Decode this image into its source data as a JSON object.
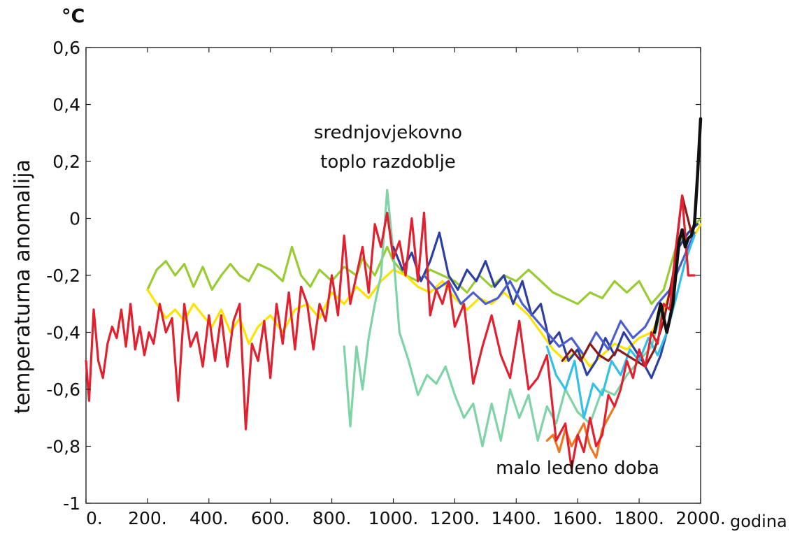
{
  "chart_data": {
    "type": "line",
    "unit_label": "°C",
    "ylabel": "temperaturna anomalija",
    "xlabel": "godina",
    "xlim": [
      0,
      2000
    ],
    "ylim": [
      -1,
      0.6
    ],
    "x_ticks": [
      0,
      200,
      400,
      600,
      800,
      1000,
      1200,
      1400,
      1600,
      1800,
      2000
    ],
    "x_tick_labels": [
      "0.",
      "200.",
      "400.",
      "600.",
      "800.",
      "1000.",
      "1200.",
      "1400.",
      "1600.",
      "1800.",
      "2000."
    ],
    "y_ticks": [
      0.6,
      0.4,
      0.2,
      0,
      -0.2,
      -0.4,
      -0.6,
      -0.8,
      -1
    ],
    "y_tick_labels": [
      "0,6",
      "0,4",
      "0,2",
      "0",
      "-0,2",
      "-0,4",
      "-0,6",
      "-0,8",
      "-1"
    ],
    "grid": false,
    "annotations": [
      {
        "text": "srednjovjekovno",
        "x": 1000,
        "y": 0.28
      },
      {
        "text": "toplo razdoblje",
        "x": 1000,
        "y": 0.15
      },
      {
        "text": "malo ledeno doba",
        "x": 1500,
        "y": -0.96
      }
    ],
    "series": [
      {
        "color": "#99CC33",
        "x": [
          200,
          230,
          260,
          290,
          320,
          350,
          380,
          410,
          440,
          470,
          500,
          530,
          560,
          600,
          640,
          670,
          700,
          730,
          760,
          800,
          840,
          880,
          900,
          940,
          980,
          1000,
          1040,
          1080,
          1120,
          1160,
          1200,
          1240,
          1280,
          1320,
          1360,
          1400,
          1440,
          1480,
          1520,
          1560,
          1600,
          1640,
          1680,
          1720,
          1760,
          1800,
          1840,
          1880,
          1920,
          1960,
          2000
        ],
        "y": [
          -0.25,
          -0.18,
          -0.15,
          -0.2,
          -0.16,
          -0.24,
          -0.17,
          -0.25,
          -0.2,
          -0.16,
          -0.2,
          -0.22,
          -0.16,
          -0.18,
          -0.22,
          -0.1,
          -0.2,
          -0.24,
          -0.18,
          -0.22,
          -0.17,
          -0.2,
          -0.14,
          -0.2,
          -0.1,
          -0.15,
          -0.2,
          -0.22,
          -0.18,
          -0.2,
          -0.22,
          -0.26,
          -0.2,
          -0.24,
          -0.2,
          -0.22,
          -0.18,
          -0.22,
          -0.26,
          -0.28,
          -0.3,
          -0.26,
          -0.28,
          -0.22,
          -0.26,
          -0.22,
          -0.3,
          -0.25,
          -0.1,
          -0.05,
          0.0
        ]
      },
      {
        "color": "#FFE300",
        "x": [
          200,
          230,
          260,
          290,
          320,
          350,
          380,
          410,
          440,
          470,
          500,
          530,
          560,
          600,
          640,
          680,
          720,
          760,
          800,
          840,
          880,
          920,
          960,
          1000,
          1040,
          1080,
          1120,
          1160,
          1200,
          1240,
          1280,
          1320,
          1360,
          1400,
          1440,
          1480,
          1520,
          1560,
          1600,
          1640,
          1680,
          1720,
          1760,
          1800,
          1840,
          1880,
          1920,
          1960,
          2000
        ],
        "y": [
          -0.25,
          -0.3,
          -0.35,
          -0.32,
          -0.36,
          -0.3,
          -0.34,
          -0.38,
          -0.32,
          -0.4,
          -0.35,
          -0.44,
          -0.38,
          -0.34,
          -0.4,
          -0.32,
          -0.3,
          -0.35,
          -0.26,
          -0.3,
          -0.24,
          -0.28,
          -0.22,
          -0.18,
          -0.2,
          -0.24,
          -0.26,
          -0.22,
          -0.28,
          -0.32,
          -0.28,
          -0.3,
          -0.26,
          -0.3,
          -0.34,
          -0.4,
          -0.46,
          -0.5,
          -0.46,
          -0.52,
          -0.48,
          -0.44,
          -0.46,
          -0.42,
          -0.4,
          -0.32,
          -0.2,
          -0.1,
          -0.02
        ]
      },
      {
        "color": "#7ED3A7",
        "x": [
          840,
          860,
          880,
          900,
          920,
          940,
          960,
          980,
          1000,
          1020,
          1050,
          1080,
          1110,
          1140,
          1170,
          1200,
          1230,
          1260,
          1290,
          1320,
          1350,
          1380,
          1410,
          1440,
          1470,
          1500,
          1530,
          1560,
          1600,
          1640,
          1680,
          1720,
          1760,
          1800,
          1840,
          1880
        ],
        "y": [
          -0.45,
          -0.73,
          -0.45,
          -0.6,
          -0.42,
          -0.3,
          -0.2,
          0.1,
          -0.12,
          -0.4,
          -0.5,
          -0.62,
          -0.55,
          -0.58,
          -0.52,
          -0.62,
          -0.7,
          -0.65,
          -0.8,
          -0.65,
          -0.78,
          -0.6,
          -0.7,
          -0.62,
          -0.78,
          -0.66,
          -0.72,
          -0.6,
          -0.68,
          -0.72,
          -0.6,
          -0.62,
          -0.55,
          -0.5,
          -0.45,
          -0.3
        ]
      },
      {
        "color": "#2E3FA3",
        "x": [
          1000,
          1030,
          1060,
          1090,
          1120,
          1150,
          1180,
          1210,
          1240,
          1270,
          1300,
          1330,
          1360,
          1390,
          1420,
          1450,
          1480,
          1510,
          1540,
          1570,
          1600,
          1630,
          1660,
          1690,
          1720,
          1750,
          1780,
          1810,
          1840,
          1870,
          1900,
          1930,
          1960,
          1990
        ],
        "y": [
          -0.1,
          -0.18,
          -0.12,
          -0.22,
          -0.15,
          -0.05,
          -0.2,
          -0.25,
          -0.18,
          -0.22,
          -0.15,
          -0.24,
          -0.2,
          -0.3,
          -0.22,
          -0.34,
          -0.3,
          -0.44,
          -0.4,
          -0.5,
          -0.46,
          -0.55,
          -0.5,
          -0.42,
          -0.48,
          -0.4,
          -0.45,
          -0.5,
          -0.56,
          -0.48,
          -0.36,
          -0.1,
          -0.05,
          -0.02
        ]
      },
      {
        "color": "#4B5ED0",
        "x": [
          1100,
          1140,
          1180,
          1220,
          1260,
          1300,
          1340,
          1380,
          1420,
          1460,
          1500,
          1540,
          1580,
          1620,
          1660,
          1700,
          1740,
          1780,
          1820,
          1860,
          1900,
          1940,
          1980
        ],
        "y": [
          -0.2,
          -0.25,
          -0.22,
          -0.3,
          -0.26,
          -0.3,
          -0.28,
          -0.22,
          -0.3,
          -0.35,
          -0.4,
          -0.45,
          -0.42,
          -0.48,
          -0.4,
          -0.46,
          -0.36,
          -0.42,
          -0.38,
          -0.3,
          -0.25,
          -0.15,
          -0.05
        ]
      },
      {
        "color": "#33BFE8",
        "x": [
          1500,
          1530,
          1560,
          1590,
          1620,
          1650,
          1680,
          1710,
          1740,
          1770,
          1800,
          1830,
          1860,
          1890,
          1920,
          1950,
          1980
        ],
        "y": [
          -0.45,
          -0.55,
          -0.6,
          -0.5,
          -0.7,
          -0.58,
          -0.62,
          -0.5,
          -0.55,
          -0.46,
          -0.5,
          -0.42,
          -0.48,
          -0.4,
          -0.28,
          -0.15,
          -0.06
        ]
      },
      {
        "color": "#EE7722",
        "x": [
          1500,
          1520,
          1540,
          1560,
          1580,
          1600,
          1620,
          1640,
          1660,
          1680,
          1700,
          1720
        ],
        "y": [
          -0.78,
          -0.76,
          -0.82,
          -0.74,
          -0.8,
          -0.76,
          -0.72,
          -0.8,
          -0.84,
          -0.74,
          -0.7,
          -0.66
        ]
      },
      {
        "color": "#8B1A1A",
        "x": [
          1550,
          1580,
          1610,
          1640,
          1670,
          1700,
          1730,
          1760,
          1790,
          1820,
          1850,
          1880,
          1910,
          1940,
          1970
        ],
        "y": [
          -0.5,
          -0.46,
          -0.5,
          -0.44,
          -0.48,
          -0.5,
          -0.46,
          -0.48,
          -0.5,
          -0.52,
          -0.46,
          -0.36,
          -0.2,
          0.08,
          -0.05
        ]
      },
      {
        "color": "#E12030",
        "x": [
          0,
          10,
          25,
          40,
          55,
          70,
          85,
          100,
          115,
          130,
          145,
          160,
          175,
          190,
          205,
          220,
          240,
          260,
          280,
          300,
          320,
          340,
          360,
          380,
          400,
          420,
          440,
          460,
          480,
          500,
          520,
          540,
          560,
          580,
          600,
          620,
          640,
          660,
          680,
          700,
          720,
          740,
          760,
          780,
          800,
          820,
          840,
          860,
          880,
          900,
          920,
          940,
          960,
          980,
          1000,
          1020,
          1040,
          1060,
          1080,
          1100,
          1120,
          1140,
          1160,
          1180,
          1200,
          1230,
          1260,
          1290,
          1320,
          1350,
          1380,
          1410,
          1440,
          1470,
          1500,
          1530,
          1560,
          1580,
          1600,
          1620,
          1640,
          1660,
          1680,
          1700,
          1720,
          1740,
          1760,
          1780,
          1800,
          1820,
          1840,
          1860,
          1880,
          1900,
          1920,
          1940,
          1960,
          1980
        ],
        "y": [
          -0.5,
          -0.64,
          -0.32,
          -0.5,
          -0.56,
          -0.44,
          -0.38,
          -0.42,
          -0.32,
          -0.45,
          -0.3,
          -0.46,
          -0.38,
          -0.48,
          -0.4,
          -0.44,
          -0.3,
          -0.4,
          -0.35,
          -0.64,
          -0.3,
          -0.45,
          -0.4,
          -0.52,
          -0.34,
          -0.5,
          -0.34,
          -0.52,
          -0.36,
          -0.3,
          -0.74,
          -0.44,
          -0.5,
          -0.36,
          -0.56,
          -0.3,
          -0.44,
          -0.26,
          -0.46,
          -0.24,
          -0.3,
          -0.46,
          -0.3,
          -0.36,
          -0.2,
          -0.34,
          -0.06,
          -0.3,
          -0.2,
          -0.1,
          -0.26,
          -0.02,
          -0.1,
          0.02,
          -0.14,
          -0.08,
          -0.2,
          0.0,
          -0.22,
          0.02,
          -0.34,
          -0.25,
          -0.3,
          -0.22,
          -0.38,
          -0.3,
          -0.58,
          -0.45,
          -0.34,
          -0.48,
          -0.56,
          -0.36,
          -0.6,
          -0.56,
          -0.48,
          -0.78,
          -0.72,
          -0.88,
          -0.76,
          -0.82,
          -0.7,
          -0.8,
          -0.76,
          -0.62,
          -0.66,
          -0.6,
          -0.5,
          -0.56,
          -0.46,
          -0.52,
          -0.4,
          -0.44,
          -0.3,
          -0.32,
          -0.1,
          0.08,
          -0.2,
          -0.2
        ]
      },
      {
        "color": "#111111",
        "width": 4.5,
        "x": [
          1850,
          1870,
          1890,
          1910,
          1930,
          1940,
          1950,
          1960,
          1970,
          1980,
          1990,
          2000
        ],
        "y": [
          -0.4,
          -0.3,
          -0.4,
          -0.3,
          -0.08,
          -0.04,
          -0.1,
          -0.07,
          -0.06,
          -0.02,
          0.15,
          0.35
        ]
      }
    ]
  }
}
